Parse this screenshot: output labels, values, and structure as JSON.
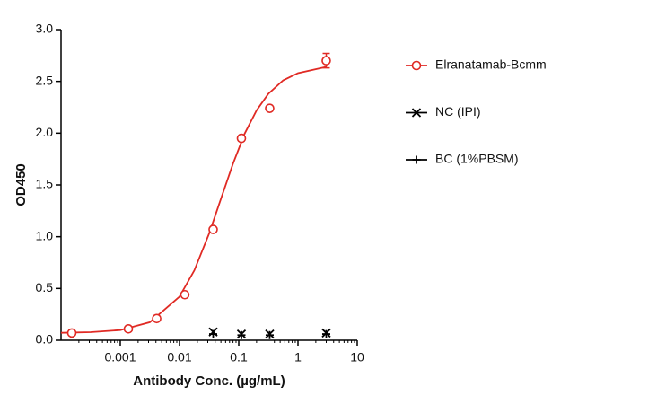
{
  "chart_data": {
    "type": "scatter",
    "x_label": "Antibody Conc. (µg/mL)",
    "y_label": "OD450",
    "xscale": "log",
    "xlim": [
      0.0001,
      10
    ],
    "xticks": [
      0.001,
      0.01,
      0.1,
      1,
      10
    ],
    "ylim": [
      0,
      3
    ],
    "yticks": [
      {
        "value": 0,
        "label": "0.0"
      },
      {
        "value": 0.5,
        "label": "0.5"
      },
      {
        "value": 1,
        "label": "1.0"
      },
      {
        "value": 1.5,
        "label": "1.5"
      },
      {
        "value": 2,
        "label": "2.0"
      },
      {
        "value": 2.5,
        "label": "2.5"
      },
      {
        "value": 3,
        "label": "3.0"
      }
    ],
    "legend": "right",
    "series": [
      {
        "name": "Elranatamab-Bcmm",
        "color": "#e02a24",
        "marker": "circle",
        "x": [
          0.000152,
          0.00137,
          0.00412,
          0.0123,
          0.037,
          0.111,
          0.333,
          3
        ],
        "values": [
          0.07,
          0.11,
          0.21,
          0.44,
          1.07,
          1.95,
          2.24,
          2.7
        ],
        "errors": [
          null,
          null,
          null,
          null,
          null,
          null,
          null,
          0.07
        ],
        "fit_curve": {
          "x": [
            0.0001,
            0.000316,
            0.001,
            0.00316,
            0.01,
            0.0178,
            0.0316,
            0.05,
            0.0794,
            0.126,
            0.2,
            0.316,
            0.562,
            1,
            3
          ],
          "values": [
            0.072,
            0.078,
            0.098,
            0.174,
            0.421,
            0.675,
            1.03,
            1.365,
            1.7,
            1.996,
            2.22,
            2.38,
            2.51,
            2.58,
            2.64
          ]
        }
      },
      {
        "name": "NC (IPI)",
        "color": "#000000",
        "marker": "x",
        "x": [
          0.037,
          0.111,
          0.333,
          3
        ],
        "values": [
          0.08,
          0.06,
          0.06,
          0.07
        ]
      },
      {
        "name": "BC (1%PBSM)",
        "color": "#000000",
        "marker": "plus",
        "x": [
          0.037,
          0.111,
          0.333,
          3
        ],
        "values": [
          0.06,
          0.05,
          0.05,
          0.06
        ]
      }
    ]
  }
}
